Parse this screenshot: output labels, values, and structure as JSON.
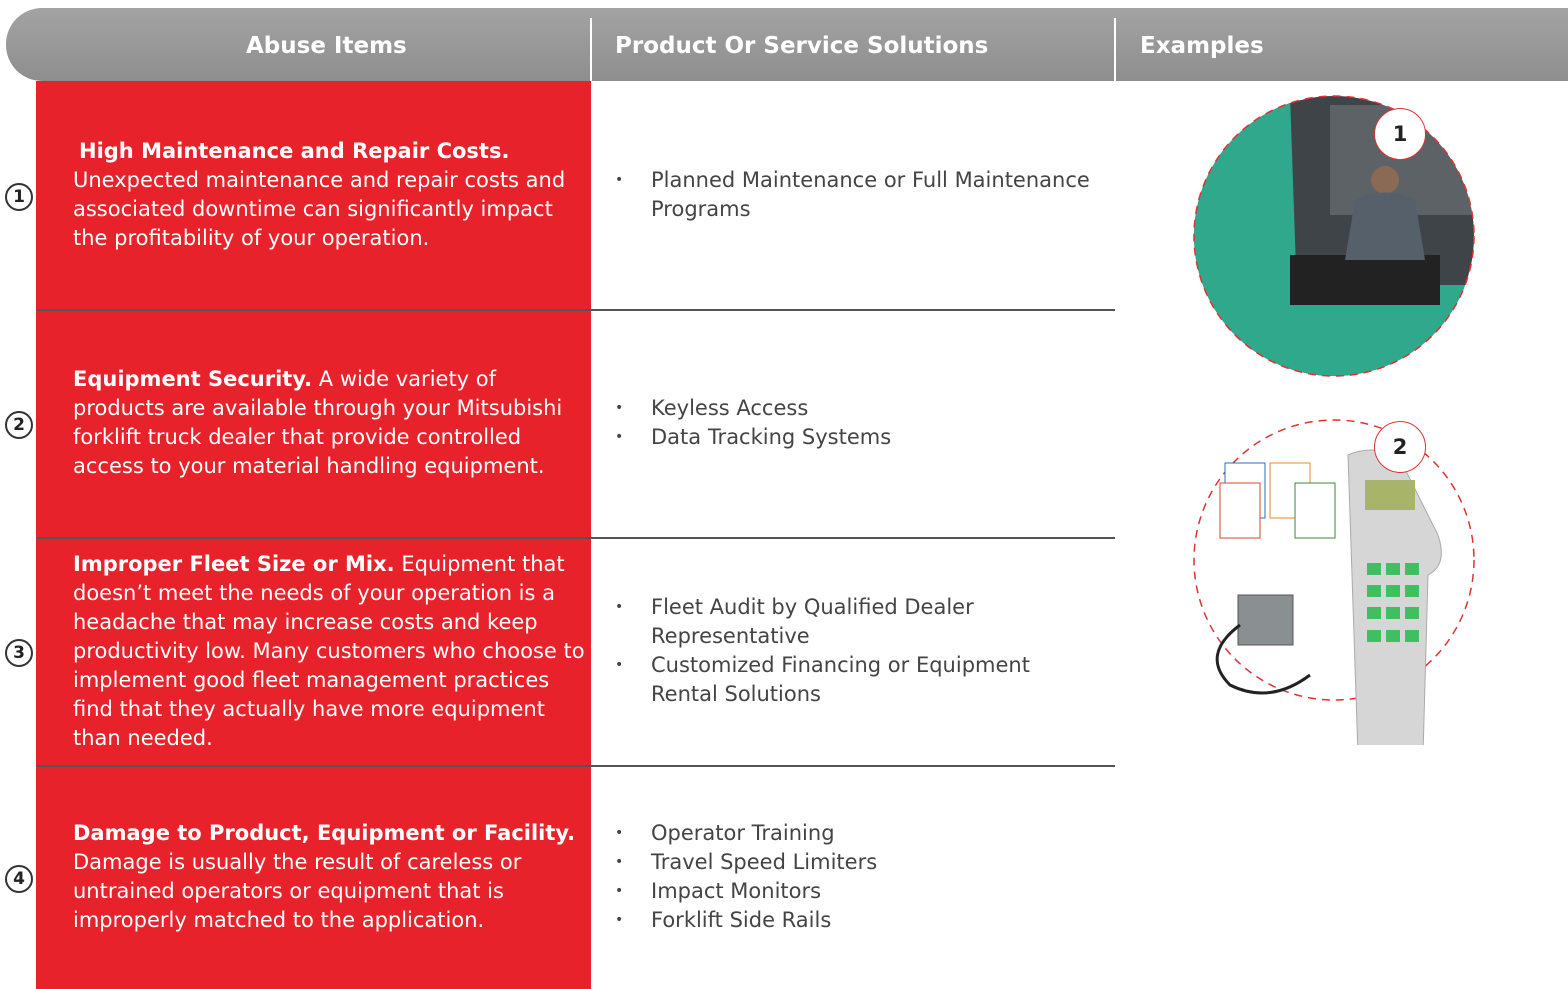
{
  "header": {
    "columns": [
      "Abuse Items",
      "Product Or Service Solutions",
      "Examples"
    ]
  },
  "rows": [
    {
      "number": "1",
      "title": "High Maintenance and Repair Costs.",
      "description": "Unexpected maintenance and repair costs and associated downtime can significantly impact the profitability of your operation.",
      "solutions": [
        "Planned Maintenance or Full Maintenance Programs"
      ]
    },
    {
      "number": "2",
      "title": "Equipment Security.",
      "description": "A wide variety of products are available through your Mitsubishi forklift truck dealer that provide controlled access to your material handling equipment.",
      "solutions": [
        "Keyless Access",
        "Data Tracking Systems"
      ]
    },
    {
      "number": "3",
      "title": "Improper Fleet Size or Mix.",
      "description": "Equipment that doesn’t meet the needs of your operation is a headache that may increase costs and keep productivity low. Many customers who choose to implement good fleet management practices find that they actually have more equipment than needed.",
      "solutions": [
        "Fleet Audit by Qualified Dealer Representative",
        "Customized Financing or Equipment Rental Solutions"
      ]
    },
    {
      "number": "4",
      "title": "Damage to Product, Equipment or Facility.",
      "description": "Damage is usually the result of careless or untrained operators or equipment that is improperly matched to the application.",
      "solutions": [
        "Operator Training",
        "Travel Speed Limiters",
        "Impact Monitors",
        "Forklift Side Rails"
      ]
    }
  ],
  "examples": [
    {
      "number": "1"
    },
    {
      "number": "2"
    }
  ]
}
